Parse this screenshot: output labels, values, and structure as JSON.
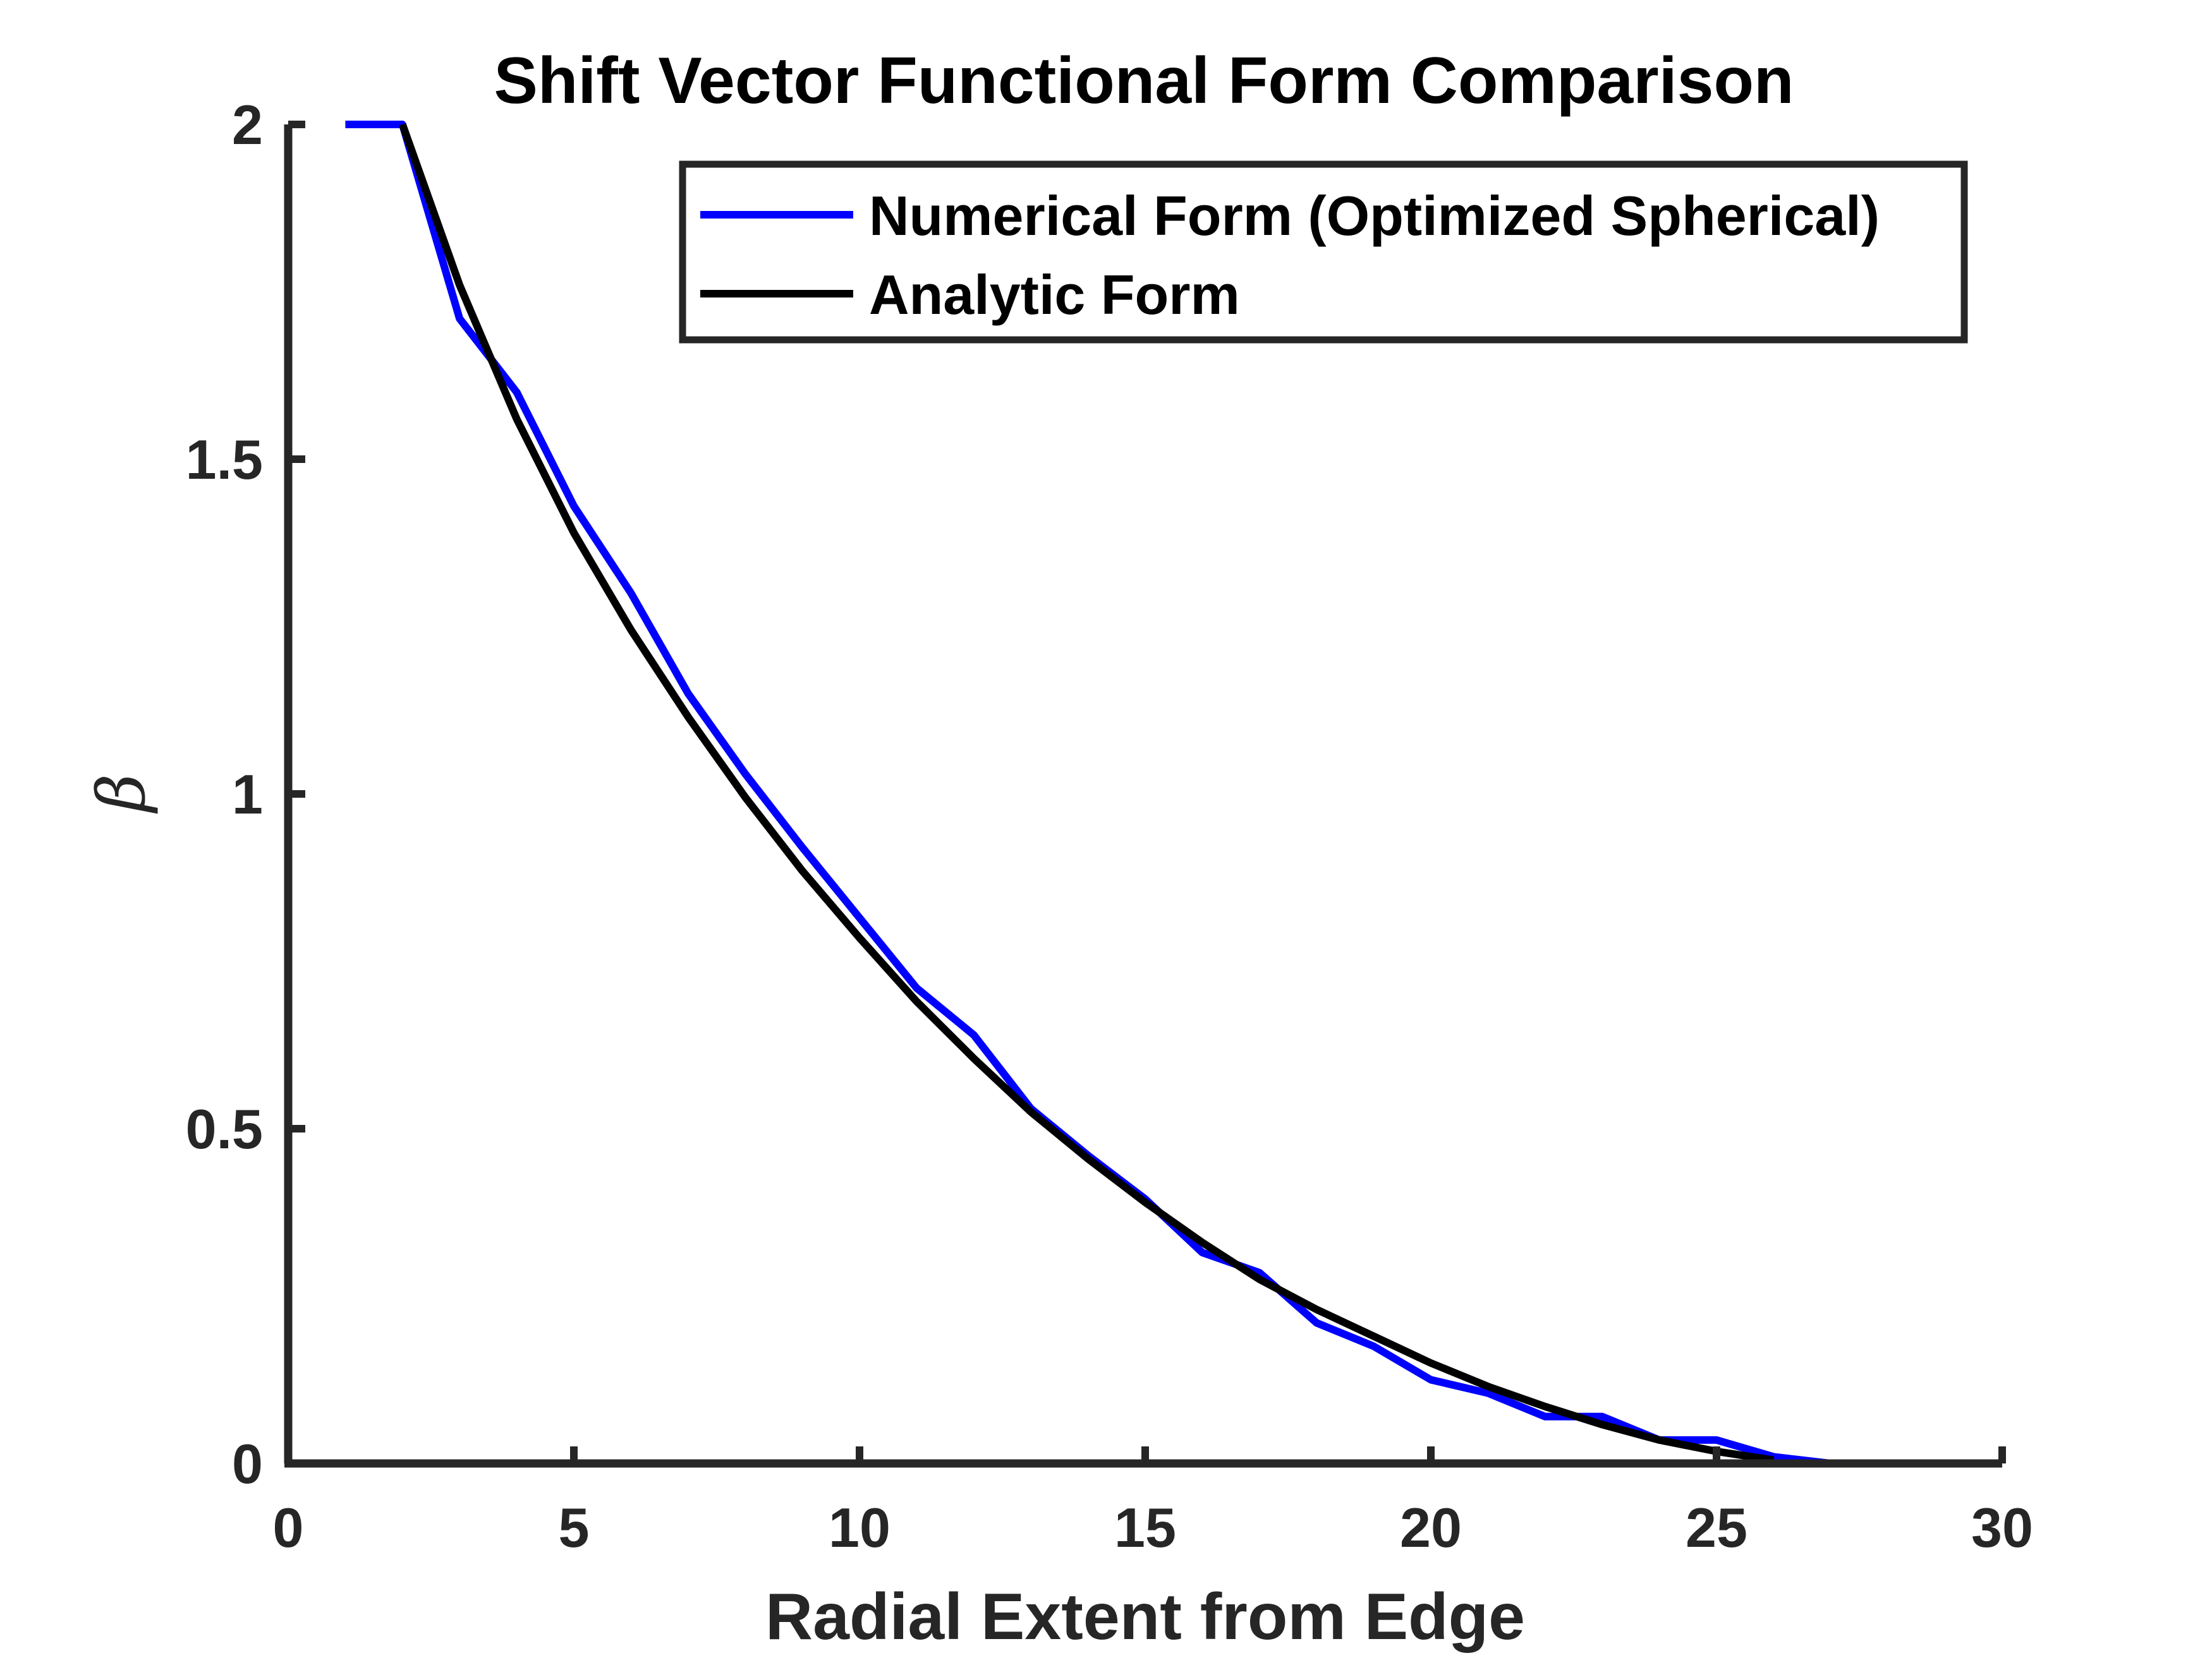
{
  "chart_data": {
    "type": "line",
    "title": "Shift Vector Functional Form Comparison",
    "xlabel": "Radial Extent from Edge",
    "ylabel": "β",
    "xlim": [
      0,
      30
    ],
    "ylim": [
      0,
      2
    ],
    "xticks": [
      "0",
      "5",
      "10",
      "15",
      "20",
      "25",
      "30"
    ],
    "yticks": [
      "0",
      "0.5",
      "1",
      "1.5",
      "2"
    ],
    "grid": false,
    "legend_position": "top-right",
    "series": [
      {
        "name": "Numerical Form (Optimized Spherical)",
        "color": "#0000ff",
        "x": [
          1,
          2,
          3,
          4,
          5,
          6,
          7,
          8,
          9,
          10,
          11,
          12,
          13,
          14,
          15,
          16,
          17,
          18,
          19,
          20,
          21,
          22,
          23,
          24,
          25,
          26,
          27
        ],
        "y": [
          2.0,
          2.0,
          1.71,
          1.6,
          1.43,
          1.3,
          1.15,
          1.03,
          0.92,
          0.815,
          0.71,
          0.64,
          0.53,
          0.46,
          0.395,
          0.315,
          0.285,
          0.21,
          0.175,
          0.125,
          0.105,
          0.07,
          0.07,
          0.035,
          0.035,
          0.01,
          0.0
        ]
      },
      {
        "name": "Analytic Form",
        "color": "#000000",
        "x": [
          2,
          3,
          4,
          5,
          6,
          7,
          8,
          9,
          10,
          11,
          12,
          13,
          14,
          15,
          16,
          17,
          18,
          19,
          20,
          21,
          22,
          23,
          24,
          25,
          26
        ],
        "y": [
          2.0,
          1.76,
          1.56,
          1.39,
          1.245,
          1.115,
          0.995,
          0.885,
          0.785,
          0.69,
          0.605,
          0.525,
          0.455,
          0.39,
          0.33,
          0.275,
          0.23,
          0.19,
          0.15,
          0.115,
          0.085,
          0.058,
          0.035,
          0.018,
          0.005
        ]
      }
    ]
  }
}
